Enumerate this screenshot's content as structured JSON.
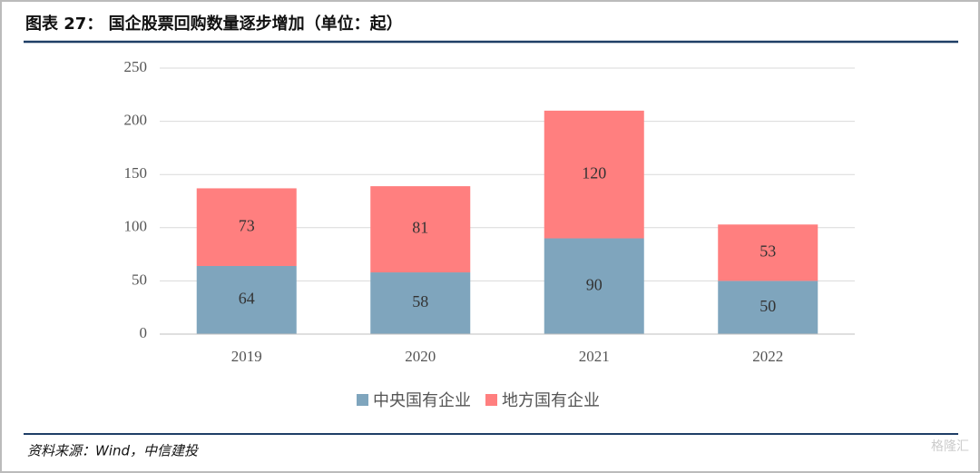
{
  "chart_data": {
    "type": "stacked_bar",
    "title": "图表 27：  国企股票回购数量逐步增加（单位：起）",
    "source": "资料来源：Wind，中信建投",
    "watermark": "格隆汇",
    "categories": [
      "2019",
      "2020",
      "2021",
      "2022"
    ],
    "series": [
      {
        "name": "中央国有企业",
        "color": "#7fa5bd",
        "values": [
          64,
          58,
          90,
          50
        ]
      },
      {
        "name": "地方国有企业",
        "color": "#ff7f7f",
        "values": [
          73,
          81,
          120,
          53
        ]
      }
    ],
    "ylim": [
      0,
      250
    ],
    "yticks": [
      0,
      50,
      100,
      150,
      200,
      250
    ],
    "grid": true,
    "legend": "bottom"
  }
}
